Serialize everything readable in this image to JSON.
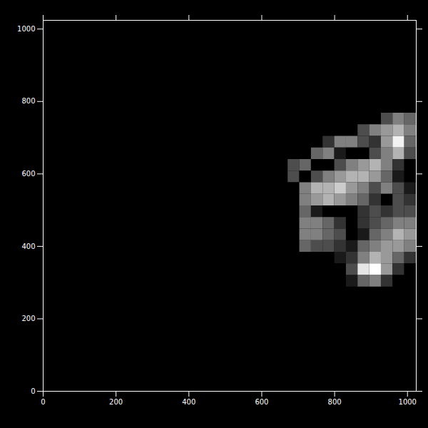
{
  "chart_data": {
    "type": "heatmap",
    "x": [
      688,
      720,
      752,
      784,
      816,
      848,
      880,
      912,
      944,
      976,
      1008
    ],
    "y": [
      752,
      720,
      688,
      656,
      624,
      592,
      560,
      528,
      496,
      464,
      432,
      400,
      368,
      336,
      304
    ],
    "z": [
      [
        0,
        0,
        0,
        0,
        0,
        0,
        0,
        0,
        0.3,
        0.5,
        0.4
      ],
      [
        0,
        0,
        0,
        0,
        0,
        0,
        0.3,
        0.5,
        0.6,
        0.7,
        0.5
      ],
      [
        0,
        0,
        0,
        0.2,
        0.5,
        0.5,
        0.3,
        0.2,
        0.6,
        0.95,
        0.4
      ],
      [
        0,
        0,
        0.4,
        0.5,
        0.1,
        0,
        0,
        0.3,
        0.5,
        0.7,
        0.3
      ],
      [
        0.3,
        0.4,
        0,
        0,
        0.3,
        0.5,
        0.6,
        0.7,
        0.5,
        0.2,
        0
      ],
      [
        0.3,
        0,
        0.3,
        0.5,
        0.6,
        0.7,
        0.7,
        0.6,
        0.4,
        0.1,
        0
      ],
      [
        0,
        0.5,
        0.7,
        0.7,
        0.8,
        0.6,
        0.5,
        0.3,
        0.5,
        0.3,
        0.1
      ],
      [
        0,
        0.5,
        0.6,
        0.7,
        0.6,
        0.5,
        0.4,
        0.2,
        0,
        0.3,
        0.2
      ],
      [
        0,
        0.4,
        0.1,
        0,
        0,
        0,
        0.2,
        0.3,
        0.2,
        0.3,
        0.3
      ],
      [
        0,
        0.5,
        0.5,
        0.4,
        0.2,
        0,
        0.2,
        0.3,
        0.4,
        0.5,
        0.5
      ],
      [
        0,
        0.5,
        0.5,
        0.4,
        0.3,
        0,
        0.1,
        0.4,
        0.5,
        0.7,
        0.6
      ],
      [
        0,
        0.4,
        0.3,
        0.3,
        0.2,
        0.1,
        0.4,
        0.5,
        0.6,
        0.6,
        0.5
      ],
      [
        0,
        0,
        0,
        0,
        0.1,
        0.2,
        0.5,
        0.7,
        0.6,
        0.4,
        0.2
      ],
      [
        0,
        0,
        0,
        0,
        0,
        0.3,
        0.9,
        1.0,
        0.6,
        0.2,
        0
      ],
      [
        0,
        0,
        0,
        0,
        0,
        0.1,
        0.4,
        0.5,
        0.2,
        0,
        0
      ]
    ],
    "zlim": [
      0,
      1
    ],
    "xlim": [
      0,
      1024
    ],
    "ylim": [
      0,
      1024
    ],
    "xticks": [
      0,
      200,
      400,
      600,
      800,
      1000
    ],
    "yticks": [
      0,
      200,
      400,
      600,
      800,
      1000
    ]
  }
}
